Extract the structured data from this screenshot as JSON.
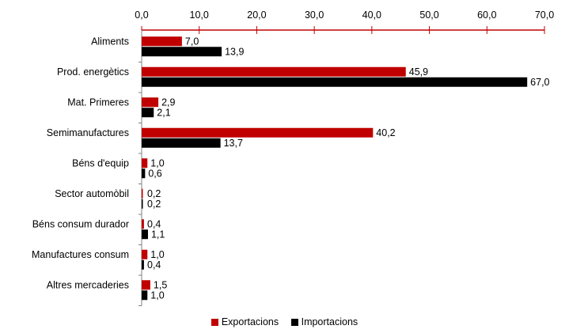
{
  "chart_data": {
    "type": "bar",
    "orientation": "horizontal",
    "categories": [
      "Aliments",
      "Prod. energètics",
      "Mat. Primeres",
      "Semimanufactures",
      "Béns d'equip",
      "Sector automòbil",
      "Béns consum durador",
      "Manufactures consum",
      "Altres mercaderies"
    ],
    "series": [
      {
        "name": "Exportacions",
        "color": "#C00000",
        "values": [
          7.0,
          45.9,
          2.9,
          40.2,
          1.0,
          0.2,
          0.4,
          1.0,
          1.5
        ],
        "labels": [
          "7,0",
          "45,9",
          "2,9",
          "40,2",
          "1,0",
          "0,2",
          "0,4",
          "1,0",
          "1,5"
        ]
      },
      {
        "name": "Importacions",
        "color": "#000000",
        "values": [
          13.9,
          67.0,
          2.1,
          13.7,
          0.6,
          0.2,
          1.1,
          0.4,
          1.0
        ],
        "labels": [
          "13,9",
          "67,0",
          "2,1",
          "13,7",
          "0,6",
          "0,2",
          "1,1",
          "0,4",
          "1,0"
        ]
      }
    ],
    "xlim": [
      0,
      70
    ],
    "ticks": [
      0,
      10,
      20,
      30,
      40,
      50,
      60,
      70
    ],
    "tick_labels": [
      "0,0",
      "10,0",
      "20,0",
      "30,0",
      "40,0",
      "50,0",
      "60,0",
      "70,0"
    ],
    "axis_position": "top",
    "axis_color": "#C00000",
    "grid": false,
    "legend_position": "bottom"
  }
}
